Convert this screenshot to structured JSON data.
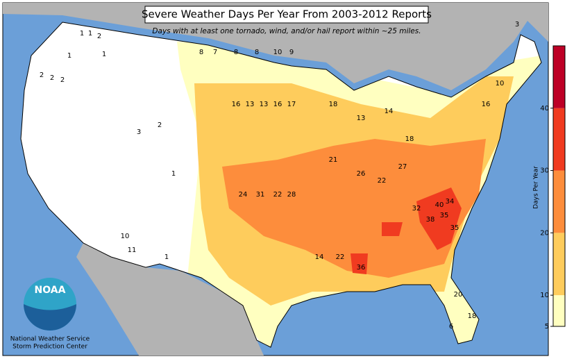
{
  "title": "Severe Weather Days Per Year From 2003-2012 Reports",
  "subtitle": "Days with at least one tornado, wind, and/or hail report within ~25 miles.",
  "logo": {
    "text": "NOAA",
    "lines": [
      "National Weather Service",
      "Storm Prediction Center"
    ]
  },
  "colorbar": {
    "label": "Days Per Year",
    "lim": [
      5,
      50
    ],
    "ticks": [
      5,
      10,
      20,
      30,
      40
    ],
    "bounds": [
      5,
      10,
      20,
      30,
      40,
      50
    ],
    "colors": [
      "#ffffc0",
      "#fecc5c",
      "#fd8d3c",
      "#f03b20",
      "#bd0026"
    ]
  },
  "map_labels": [
    1,
    1,
    2,
    1,
    1,
    2,
    2,
    2,
    8,
    7,
    8,
    8,
    10,
    9,
    16,
    13,
    13,
    16,
    17,
    24,
    31,
    22,
    28,
    32,
    38,
    35,
    35,
    40,
    34,
    36,
    22,
    14,
    20,
    18,
    6,
    16,
    10,
    3,
    3,
    2,
    1,
    10,
    11,
    1,
    18,
    13,
    14,
    18,
    21,
    26,
    22,
    27
  ]
}
